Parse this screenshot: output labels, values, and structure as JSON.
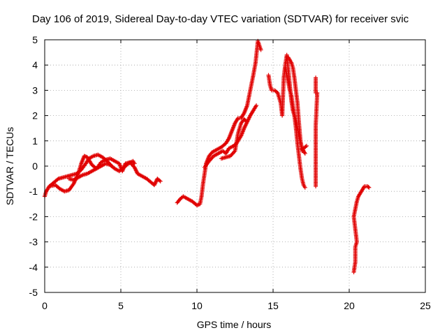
{
  "chart_data": {
    "type": "scatter",
    "title": "Day 106 of 2019, Sidereal Day-to-day VTEC variation (SDTVAR) for receiver svic",
    "xlabel": "GPS time / hours",
    "ylabel": "SDTVAR / TECUs",
    "xlim": [
      0,
      25
    ],
    "ylim": [
      -5,
      5
    ],
    "xticks": [
      "0",
      "5",
      "10",
      "15",
      "20",
      "25"
    ],
    "yticks": [
      "-5",
      "-4",
      "-3",
      "-2",
      "-1",
      "0",
      "1",
      "2",
      "3",
      "4",
      "5"
    ],
    "grid": true,
    "marker": "+",
    "series": [
      {
        "name": "SDTVAR",
        "color": "#e00000",
        "segments": [
          {
            "points": [
              [
                0.0,
                -1.2
              ],
              [
                0.1,
                -1.0
              ],
              [
                0.3,
                -0.8
              ],
              [
                0.6,
                -0.65
              ],
              [
                0.9,
                -0.5
              ],
              [
                1.2,
                -0.45
              ],
              [
                1.5,
                -0.4
              ],
              [
                1.8,
                -0.35
              ],
              [
                2.1,
                -0.3
              ],
              [
                2.4,
                -0.15
              ],
              [
                2.7,
                0.1
              ],
              [
                2.9,
                0.3
              ],
              [
                3.2,
                0.4
              ],
              [
                3.5,
                0.45
              ],
              [
                3.8,
                0.35
              ],
              [
                4.1,
                0.2
              ],
              [
                4.4,
                0.0
              ]
            ]
          },
          {
            "points": [
              [
                0.3,
                -0.8
              ],
              [
                0.7,
                -0.75
              ],
              [
                1.0,
                -0.9
              ],
              [
                1.3,
                -1.0
              ],
              [
                1.6,
                -0.95
              ],
              [
                1.9,
                -0.7
              ],
              [
                2.2,
                -0.3
              ],
              [
                2.4,
                0.1
              ],
              [
                2.6,
                0.4
              ],
              [
                2.8,
                0.35
              ],
              [
                3.1,
                0.05
              ],
              [
                3.4,
                -0.1
              ],
              [
                3.7,
                0.0
              ],
              [
                4.0,
                0.1
              ],
              [
                4.3,
                0.05
              ],
              [
                4.6,
                -0.1
              ],
              [
                4.9,
                -0.2
              ],
              [
                5.2,
                -0.05
              ],
              [
                5.5,
                0.1
              ],
              [
                5.8,
                0.2
              ],
              [
                5.9,
                0.1
              ]
            ]
          },
          {
            "points": [
              [
                1.6,
                -0.5
              ],
              [
                1.9,
                -0.55
              ],
              [
                2.2,
                -0.45
              ],
              [
                2.5,
                -0.35
              ],
              [
                2.8,
                -0.3
              ],
              [
                3.1,
                -0.2
              ],
              [
                3.4,
                -0.1
              ],
              [
                3.7,
                0.15
              ],
              [
                4.0,
                0.25
              ],
              [
                4.3,
                0.3
              ],
              [
                4.6,
                0.2
              ],
              [
                4.9,
                0.1
              ],
              [
                5.1,
                -0.2
              ],
              [
                5.3,
                0.1
              ],
              [
                5.6,
                0.15
              ],
              [
                5.9,
                -0.05
              ],
              [
                6.1,
                -0.3
              ],
              [
                6.4,
                -0.4
              ],
              [
                6.7,
                -0.5
              ],
              [
                7.0,
                -0.65
              ],
              [
                7.2,
                -0.75
              ],
              [
                7.4,
                -0.5
              ],
              [
                7.6,
                -0.6
              ]
            ]
          },
          {
            "points": [
              [
                8.7,
                -1.45
              ],
              [
                8.9,
                -1.3
              ],
              [
                9.1,
                -1.2
              ],
              [
                9.4,
                -1.3
              ],
              [
                9.7,
                -1.4
              ],
              [
                10.0,
                -1.55
              ],
              [
                10.2,
                -1.5
              ],
              [
                10.3,
                -1.2
              ],
              [
                10.4,
                -0.7
              ],
              [
                10.5,
                -0.3
              ],
              [
                10.6,
                0.1
              ],
              [
                10.8,
                0.4
              ],
              [
                11.0,
                0.55
              ],
              [
                11.3,
                0.65
              ],
              [
                11.6,
                0.75
              ],
              [
                11.9,
                0.9
              ],
              [
                12.1,
                1.1
              ],
              [
                12.3,
                1.4
              ],
              [
                12.5,
                1.7
              ],
              [
                12.7,
                1.9
              ],
              [
                12.9,
                1.9
              ],
              [
                13.1,
                2.1
              ],
              [
                13.3,
                2.4
              ],
              [
                13.5,
                3.0
              ],
              [
                13.7,
                3.6
              ],
              [
                13.85,
                4.1
              ],
              [
                14.0,
                4.95
              ],
              [
                14.2,
                4.6
              ]
            ]
          },
          {
            "points": [
              [
                10.5,
                -0.05
              ],
              [
                10.8,
                0.2
              ],
              [
                11.1,
                0.4
              ],
              [
                11.4,
                0.5
              ],
              [
                11.7,
                0.6
              ],
              [
                11.9,
                0.5
              ],
              [
                12.1,
                0.7
              ],
              [
                12.4,
                0.8
              ],
              [
                12.6,
                0.9
              ],
              [
                12.9,
                1.2
              ],
              [
                13.1,
                1.5
              ],
              [
                13.3,
                1.75
              ],
              [
                13.5,
                2.0
              ],
              [
                13.7,
                2.2
              ],
              [
                13.9,
                2.4
              ]
            ]
          },
          {
            "points": [
              [
                11.6,
                0.3
              ],
              [
                11.9,
                0.35
              ],
              [
                12.2,
                0.4
              ],
              [
                12.5,
                0.6
              ],
              [
                12.7,
                1.3
              ],
              [
                12.9,
                1.7
              ],
              [
                13.1,
                1.85
              ],
              [
                13.2,
                1.8
              ]
            ]
          },
          {
            "points": [
              [
                14.7,
                3.6
              ],
              [
                14.8,
                3.2
              ],
              [
                14.9,
                3.0
              ],
              [
                15.1,
                3.0
              ],
              [
                15.3,
                2.9
              ],
              [
                15.5,
                2.5
              ],
              [
                15.6,
                2.0
              ],
              [
                15.7,
                3.5
              ],
              [
                15.8,
                4.0
              ],
              [
                15.9,
                4.4
              ],
              [
                16.0,
                3.8
              ],
              [
                16.1,
                3.2
              ],
              [
                16.2,
                2.6
              ],
              [
                16.3,
                2.2
              ],
              [
                16.5,
                1.8
              ],
              [
                16.7,
                1.2
              ],
              [
                16.9,
                0.7
              ],
              [
                17.1,
                0.5
              ]
            ]
          },
          {
            "points": [
              [
                15.8,
                3.9
              ],
              [
                15.9,
                3.6
              ],
              [
                16.0,
                3.3
              ],
              [
                16.1,
                3.0
              ],
              [
                16.2,
                2.8
              ],
              [
                16.3,
                2.4
              ],
              [
                16.4,
                2.0
              ],
              [
                16.5,
                1.5
              ],
              [
                16.6,
                0.9
              ],
              [
                16.7,
                0.4
              ],
              [
                16.8,
                -0.1
              ],
              [
                16.9,
                -0.5
              ],
              [
                17.0,
                -0.75
              ],
              [
                17.1,
                -0.85
              ]
            ]
          },
          {
            "points": [
              [
                16.0,
                4.3
              ],
              [
                16.1,
                4.2
              ],
              [
                16.2,
                4.1
              ],
              [
                16.3,
                3.9
              ],
              [
                16.4,
                3.5
              ],
              [
                16.5,
                3.0
              ],
              [
                16.6,
                2.5
              ],
              [
                16.7,
                1.7
              ],
              [
                16.8,
                1.0
              ],
              [
                16.9,
                0.6
              ],
              [
                17.0,
                0.7
              ],
              [
                17.2,
                0.8
              ]
            ]
          },
          {
            "points": [
              [
                17.8,
                3.5
              ],
              [
                17.8,
                2.9
              ],
              [
                17.9,
                2.9
              ],
              [
                17.8,
                1.6
              ],
              [
                17.8,
                1.3
              ],
              [
                17.8,
                0.8
              ],
              [
                17.8,
                0.1
              ],
              [
                17.8,
                -0.4
              ],
              [
                17.8,
                -0.8
              ]
            ]
          },
          {
            "points": [
              [
                20.3,
                -4.2
              ],
              [
                20.4,
                -3.8
              ],
              [
                20.4,
                -3.2
              ],
              [
                20.5,
                -3.0
              ],
              [
                20.3,
                -2.0
              ],
              [
                20.4,
                -1.7
              ],
              [
                20.5,
                -1.4
              ],
              [
                20.6,
                -1.2
              ],
              [
                20.8,
                -1.0
              ],
              [
                21.0,
                -0.8
              ],
              [
                21.2,
                -0.8
              ],
              [
                21.3,
                -0.85
              ]
            ]
          }
        ]
      }
    ]
  }
}
